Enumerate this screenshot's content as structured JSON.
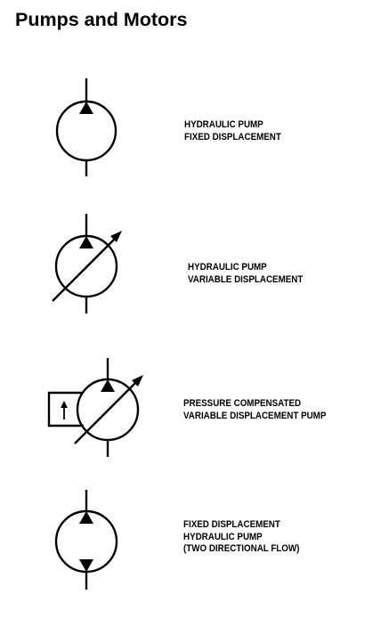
{
  "page": {
    "title": "Pumps and Motors"
  },
  "symbols": [
    {
      "id": "hydraulic-pump-fixed",
      "icon": "hydraulic-pump-fixed-displacement-icon",
      "label_lines": [
        "HYDRAULIC PUMP",
        "FIXED DISPLACEMENT"
      ]
    },
    {
      "id": "hydraulic-pump-variable",
      "icon": "hydraulic-pump-variable-displacement-icon",
      "label_lines": [
        "HYDRAULIC PUMP",
        "VARIABLE DISPLACEMENT"
      ]
    },
    {
      "id": "pressure-compensated-pump",
      "icon": "pressure-compensated-variable-displacement-pump-icon",
      "label_lines": [
        "PRESSURE COMPENSATED",
        "VARIABLE DISPLACEMENT PUMP"
      ]
    },
    {
      "id": "bidirectional-fixed-pump",
      "icon": "bidirectional-fixed-displacement-pump-icon",
      "label_lines": [
        "FIXED DISPLACEMENT",
        "HYDRAULIC PUMP",
        "(TWO DIRECTIONAL FLOW)"
      ]
    }
  ],
  "colors": {
    "ink": "#000000",
    "background": "#ffffff"
  }
}
